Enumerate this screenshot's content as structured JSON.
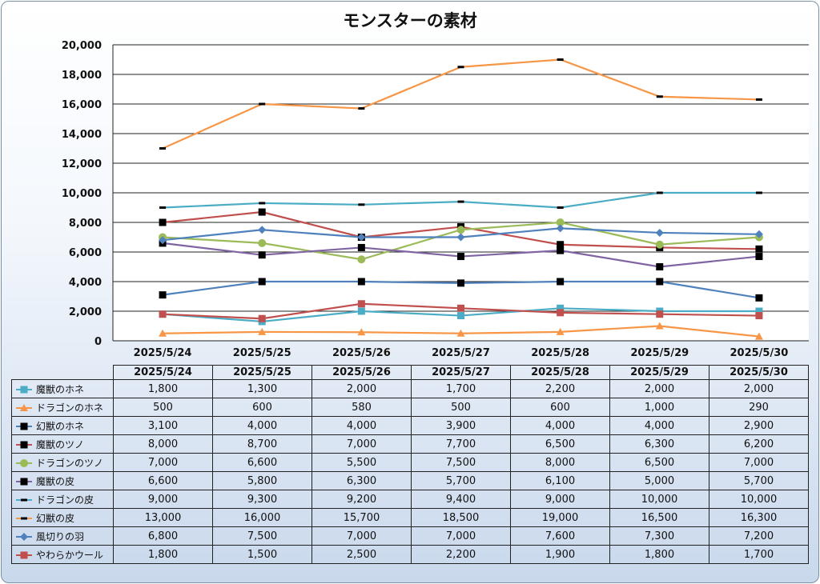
{
  "chart_data": {
    "type": "line",
    "title": "モンスターの素材",
    "xlabel": "",
    "ylabel": "",
    "ylim": [
      0,
      20000
    ],
    "yticks": [
      0,
      2000,
      4000,
      6000,
      8000,
      10000,
      12000,
      14000,
      16000,
      18000,
      20000
    ],
    "ytick_labels": [
      "0",
      "2,000",
      "4,000",
      "6,000",
      "8,000",
      "10,000",
      "12,000",
      "14,000",
      "16,000",
      "18,000",
      "20,000"
    ],
    "categories": [
      "2025/5/24",
      "2025/5/25",
      "2025/5/26",
      "2025/5/27",
      "2025/5/28",
      "2025/5/29",
      "2025/5/30"
    ],
    "grid": true,
    "legend": "data-table",
    "series": [
      {
        "name": "魔獣のホネ",
        "values": [
          1800,
          1300,
          2000,
          1700,
          2200,
          2000,
          2000
        ],
        "labels": [
          "1,800",
          "1,300",
          "2,000",
          "1,700",
          "2,200",
          "2,000",
          "2,000"
        ],
        "color": "#4bacc6",
        "line": "#4bacc6",
        "marker": "square"
      },
      {
        "name": "ドラゴンのホネ",
        "values": [
          500,
          600,
          580,
          500,
          600,
          1000,
          290
        ],
        "labels": [
          "500",
          "600",
          "580",
          "500",
          "600",
          "1,000",
          "290"
        ],
        "color": "#f79646",
        "line": "#f79646",
        "marker": "triangle"
      },
      {
        "name": "幻獣のホネ",
        "values": [
          3100,
          4000,
          4000,
          3900,
          4000,
          4000,
          2900
        ],
        "labels": [
          "3,100",
          "4,000",
          "4,000",
          "3,900",
          "4,000",
          "4,000",
          "2,900"
        ],
        "color": "#000000",
        "line": "#4f81bd",
        "marker": "square"
      },
      {
        "name": "魔獣のツノ",
        "values": [
          8000,
          8700,
          7000,
          7700,
          6500,
          6300,
          6200
        ],
        "labels": [
          "8,000",
          "8,700",
          "7,000",
          "7,700",
          "6,500",
          "6,300",
          "6,200"
        ],
        "color": "#000000",
        "line": "#c0504d",
        "marker": "square"
      },
      {
        "name": "ドラゴンのツノ",
        "values": [
          7000,
          6600,
          5500,
          7500,
          8000,
          6500,
          7000
        ],
        "labels": [
          "7,000",
          "6,600",
          "5,500",
          "7,500",
          "8,000",
          "6,500",
          "7,000"
        ],
        "color": "#9bbb59",
        "line": "#9bbb59",
        "marker": "circle"
      },
      {
        "name": "魔獣の皮",
        "values": [
          6600,
          5800,
          6300,
          5700,
          6100,
          5000,
          5700
        ],
        "labels": [
          "6,600",
          "5,800",
          "6,300",
          "5,700",
          "6,100",
          "5,000",
          "5,700"
        ],
        "color": "#000000",
        "line": "#8064a2",
        "marker": "square"
      },
      {
        "name": "ドラゴンの皮",
        "values": [
          9000,
          9300,
          9200,
          9400,
          9000,
          10000,
          10000
        ],
        "labels": [
          "9,000",
          "9,300",
          "9,200",
          "9,400",
          "9,000",
          "10,000",
          "10,000"
        ],
        "color": "#000000",
        "line": "#4bacc6",
        "marker": "dash"
      },
      {
        "name": "幻獣の皮",
        "values": [
          13000,
          16000,
          15700,
          18500,
          19000,
          16500,
          16300
        ],
        "labels": [
          "13,000",
          "16,000",
          "15,700",
          "18,500",
          "19,000",
          "16,500",
          "16,300"
        ],
        "color": "#000000",
        "line": "#f79646",
        "marker": "dash"
      },
      {
        "name": "風切りの羽",
        "values": [
          6800,
          7500,
          7000,
          7000,
          7600,
          7300,
          7200
        ],
        "labels": [
          "6,800",
          "7,500",
          "7,000",
          "7,000",
          "7,600",
          "7,300",
          "7,200"
        ],
        "color": "#4f81bd",
        "line": "#4f81bd",
        "marker": "diamond"
      },
      {
        "name": "やわらかウール",
        "values": [
          1800,
          1500,
          2500,
          2200,
          1900,
          1800,
          1700
        ],
        "labels": [
          "1,800",
          "1,500",
          "2,500",
          "2,200",
          "1,900",
          "1,800",
          "1,700"
        ],
        "color": "#c0504d",
        "line": "#c0504d",
        "marker": "square"
      }
    ]
  }
}
